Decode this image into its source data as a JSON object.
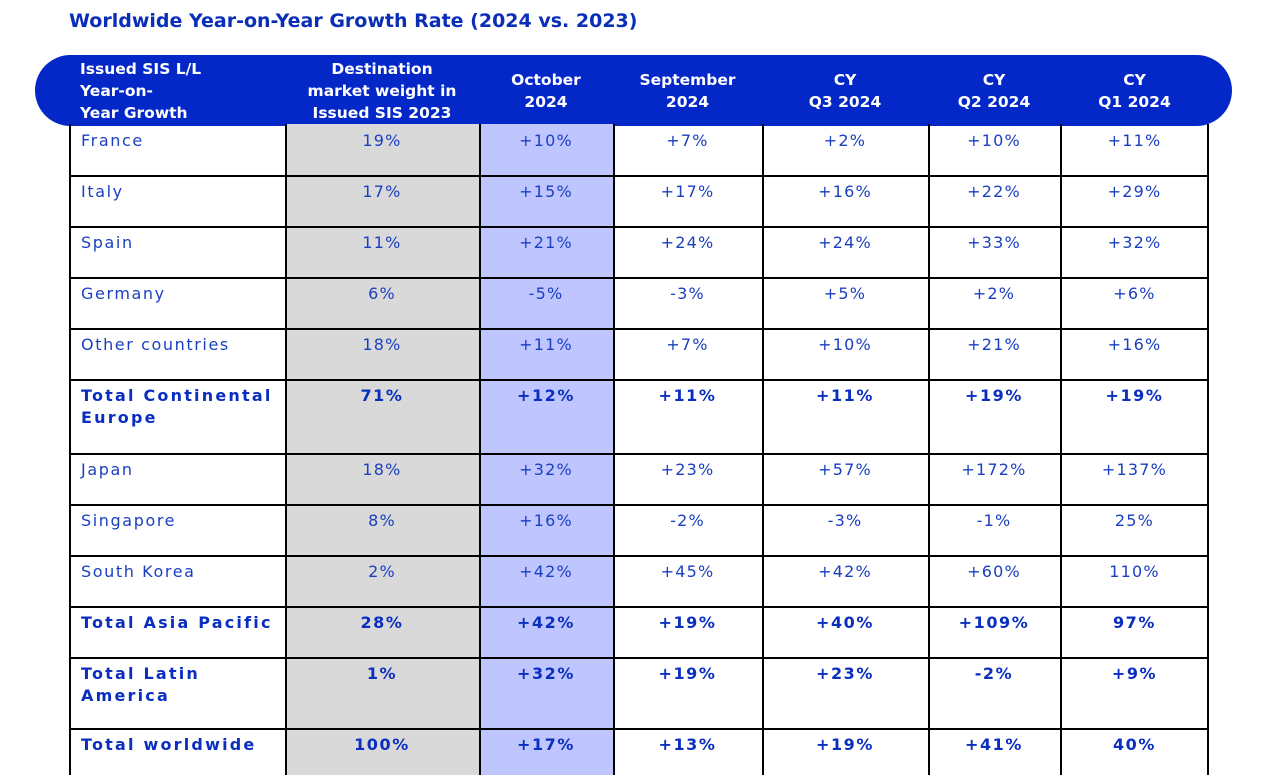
{
  "title": "Worldwide Year-on-Year Growth Rate (2024 vs. 2023)",
  "headers": [
    [
      "Issued SIS L/L",
      "Year-on-",
      "Year Growth"
    ],
    [
      "Destination",
      "market weight in",
      "Issued SIS 2023"
    ],
    [
      "October",
      "2024"
    ],
    [
      "September",
      "2024"
    ],
    [
      "CY",
      "Q3 2024"
    ],
    [
      "CY",
      "Q2 2024"
    ],
    [
      "CY",
      "Q1 2024"
    ]
  ],
  "rows": [
    {
      "label": "France",
      "bold": false,
      "cells": [
        "19%",
        "+10%",
        "+7%",
        "+2%",
        "+10%",
        "+11%"
      ]
    },
    {
      "label": "Italy",
      "bold": false,
      "cells": [
        "17%",
        "+15%",
        "+17%",
        "+16%",
        "+22%",
        "+29%"
      ]
    },
    {
      "label": "Spain",
      "bold": false,
      "cells": [
        "11%",
        "+21%",
        "+24%",
        "+24%",
        "+33%",
        "+32%"
      ]
    },
    {
      "label": "Germany",
      "bold": false,
      "cells": [
        "6%",
        "-5%",
        "-3%",
        "+5%",
        "+2%",
        "+6%"
      ]
    },
    {
      "label": "Other countries",
      "bold": false,
      "cells": [
        "18%",
        "+11%",
        "+7%",
        "+10%",
        "+21%",
        "+16%"
      ]
    },
    {
      "label": "Total Continental Europe",
      "bold": true,
      "cells": [
        "71%",
        "+12%",
        "+11%",
        "+11%",
        "+19%",
        "+19%"
      ]
    },
    {
      "label": "Japan",
      "bold": false,
      "cells": [
        "18%",
        "+32%",
        "+23%",
        "+57%",
        "+172%",
        "+137%"
      ]
    },
    {
      "label": "Singapore",
      "bold": false,
      "cells": [
        "8%",
        "+16%",
        "-2%",
        "-3%",
        "-1%",
        "25%"
      ]
    },
    {
      "label": "South Korea",
      "bold": false,
      "cells": [
        "2%",
        "+42%",
        "+45%",
        "+42%",
        "+60%",
        "110%"
      ]
    },
    {
      "label": "Total Asia Pacific",
      "bold": true,
      "cells": [
        "28%",
        "+42%",
        "+19%",
        "+40%",
        "+109%",
        "97%"
      ]
    },
    {
      "label": "Total Latin America",
      "bold": true,
      "cells": [
        "1%",
        "+32%",
        "+19%",
        "+23%",
        "-2%",
        "+9%"
      ]
    },
    {
      "label": "Total worldwide",
      "bold": true,
      "cells": [
        "100%",
        "+17%",
        "+13%",
        "+19%",
        "+41%",
        "40%"
      ]
    }
  ],
  "colors": {
    "header_band": "#0428c8",
    "title_text": "#0a2eb8",
    "cell_text": "#1a3fc0",
    "weight_column": "#d9d9d9",
    "highlight_column": "#bfc6ff"
  }
}
